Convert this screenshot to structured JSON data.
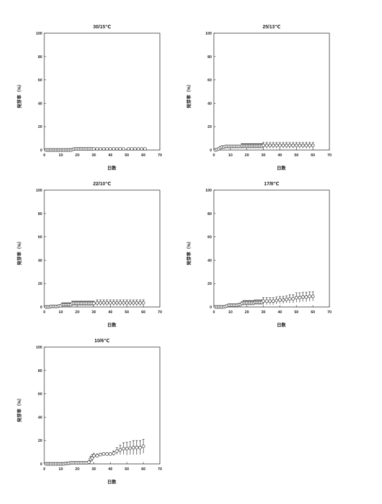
{
  "chart_data": [
    {
      "type": "scatter",
      "title": "30/15℃",
      "xlabel": "日数",
      "ylabel": "発芽率（%）",
      "xlim": [
        0,
        70
      ],
      "ylim": [
        0,
        100
      ],
      "xticks": [
        0,
        10,
        20,
        30,
        40,
        50,
        60,
        70
      ],
      "yticks": [
        0,
        20,
        40,
        60,
        80,
        100
      ],
      "grid": false,
      "marker": "open-circle",
      "x": [
        1,
        2,
        3,
        4,
        5,
        6,
        7,
        8,
        9,
        10,
        11,
        12,
        13,
        14,
        15,
        16,
        17,
        18,
        19,
        20,
        21,
        22,
        23,
        24,
        25,
        26,
        27,
        28,
        29,
        30,
        32,
        34,
        36,
        38,
        40,
        42,
        44,
        46,
        48,
        51,
        53,
        55,
        57,
        59,
        61
      ],
      "y": [
        0,
        0,
        0,
        0,
        0,
        0,
        0,
        0,
        0,
        0,
        0,
        0,
        0,
        0,
        0,
        0,
        0.5,
        0.8,
        1,
        1,
        1,
        1,
        1,
        1,
        1,
        1,
        1,
        1,
        1,
        1,
        1,
        1,
        1,
        1,
        1,
        1,
        1,
        1,
        1,
        1,
        1,
        1,
        1,
        1,
        1
      ],
      "err": [
        0,
        0,
        0,
        0,
        0,
        0,
        0,
        0,
        0,
        0,
        0,
        0,
        0,
        0,
        0,
        0,
        0,
        0,
        0,
        0,
        0,
        0,
        0,
        0,
        0,
        0,
        0,
        0,
        0,
        0,
        0,
        0,
        0,
        0,
        0,
        0,
        0,
        0,
        0,
        0,
        0,
        0,
        0,
        0,
        0
      ]
    },
    {
      "type": "scatter",
      "title": "25/13℃",
      "xlabel": "日数",
      "ylabel": "発芽率（%）",
      "xlim": [
        0,
        70
      ],
      "ylim": [
        0,
        100
      ],
      "xticks": [
        0,
        10,
        20,
        30,
        40,
        50,
        60,
        70
      ],
      "yticks": [
        0,
        20,
        40,
        60,
        80,
        100
      ],
      "grid": false,
      "marker": "open-circle",
      "x": [
        1,
        2,
        3,
        4,
        5,
        6,
        7,
        8,
        9,
        10,
        11,
        12,
        13,
        14,
        15,
        16,
        17,
        18,
        19,
        20,
        21,
        22,
        23,
        24,
        25,
        26,
        27,
        28,
        29,
        30,
        32,
        34,
        36,
        38,
        40,
        42,
        44,
        46,
        48,
        50,
        52,
        54,
        56,
        58,
        60
      ],
      "y": [
        0,
        0.5,
        1,
        2,
        2.5,
        2.5,
        3,
        3,
        3,
        3,
        3,
        3,
        3,
        3,
        3,
        3,
        3.5,
        3.5,
        3.5,
        3.5,
        3.5,
        3.5,
        3.5,
        3.5,
        3.5,
        3.5,
        3.5,
        3.5,
        3.5,
        4,
        4,
        4,
        4,
        4,
        4,
        4,
        4,
        4,
        4,
        4,
        4,
        4,
        4,
        4,
        4
      ],
      "err": [
        0,
        0,
        0.5,
        1,
        1,
        1,
        1,
        1,
        1,
        1,
        1,
        1,
        1,
        1,
        1,
        1,
        2,
        2,
        2,
        2,
        2,
        2,
        2,
        2,
        2,
        2,
        2,
        2,
        2,
        2.5,
        2.5,
        2.5,
        2.5,
        2.5,
        2.5,
        2.5,
        2.5,
        2.5,
        2.5,
        2.5,
        2.5,
        2.5,
        2.5,
        2.5,
        2.5
      ]
    },
    {
      "type": "scatter",
      "title": "22/10℃",
      "xlabel": "日数",
      "ylabel": "発芽率（%）",
      "xlim": [
        0,
        70
      ],
      "ylim": [
        0,
        100
      ],
      "xticks": [
        0,
        10,
        20,
        30,
        40,
        50,
        60,
        70
      ],
      "yticks": [
        0,
        20,
        40,
        60,
        80,
        100
      ],
      "grid": false,
      "marker": "open-circle",
      "x": [
        1,
        2,
        3,
        4,
        5,
        6,
        7,
        8,
        9,
        10,
        11,
        12,
        13,
        14,
        15,
        16,
        17,
        18,
        19,
        20,
        21,
        22,
        23,
        24,
        25,
        26,
        27,
        28,
        29,
        30,
        32,
        34,
        36,
        38,
        40,
        42,
        44,
        46,
        48,
        50,
        52,
        54,
        56,
        58,
        60
      ],
      "y": [
        0,
        0,
        0,
        0.5,
        0.5,
        0.5,
        0.5,
        0.5,
        1,
        1,
        2,
        2,
        2,
        2,
        2,
        2,
        3,
        3,
        3,
        3,
        3,
        3,
        3,
        3,
        3,
        3,
        3,
        3,
        3,
        3,
        3.5,
        3.5,
        3.5,
        3.5,
        3.5,
        3.5,
        3.5,
        3.5,
        3.5,
        3.5,
        3.5,
        3.5,
        3.5,
        3.5,
        3.5
      ],
      "err": [
        0,
        0,
        0,
        0,
        0,
        0,
        0,
        0,
        0.5,
        0.5,
        1.5,
        1.5,
        1.5,
        1.5,
        1.5,
        1.5,
        2,
        2,
        2,
        2,
        2,
        2,
        2,
        2,
        2,
        2,
        2,
        2,
        2,
        2,
        2.5,
        2.5,
        2.5,
        2.5,
        2.5,
        2.5,
        2.5,
        2.5,
        2.5,
        2.5,
        2.5,
        2.5,
        2.5,
        2.5,
        2.5
      ]
    },
    {
      "type": "scatter",
      "title": "17/8℃",
      "xlabel": "日数",
      "ylabel": "発芽率（%）",
      "xlim": [
        0,
        70
      ],
      "ylim": [
        0,
        100
      ],
      "xticks": [
        0,
        10,
        20,
        30,
        40,
        50,
        60,
        70
      ],
      "yticks": [
        0,
        20,
        40,
        60,
        80,
        100
      ],
      "grid": false,
      "marker": "open-circle",
      "x": [
        1,
        2,
        3,
        4,
        5,
        6,
        7,
        8,
        9,
        10,
        11,
        12,
        13,
        14,
        15,
        16,
        17,
        18,
        19,
        20,
        21,
        22,
        23,
        24,
        25,
        26,
        27,
        28,
        29,
        30,
        32,
        34,
        36,
        38,
        40,
        42,
        44,
        46,
        48,
        50,
        52,
        54,
        56,
        58,
        60
      ],
      "y": [
        0,
        0,
        0,
        0,
        0,
        0,
        0.5,
        1,
        1.5,
        1.5,
        1.5,
        1.5,
        1.5,
        1.5,
        2,
        2,
        3,
        3.5,
        3.5,
        3.5,
        3.5,
        3.5,
        3.5,
        3.5,
        4,
        4,
        4,
        4,
        4,
        5,
        5,
        5,
        5,
        5.5,
        6,
        6,
        6.5,
        7,
        7,
        8,
        8,
        8.5,
        8.5,
        9,
        9
      ],
      "err": [
        0,
        0,
        0,
        0,
        0,
        0,
        0.5,
        1,
        1,
        1,
        1,
        1,
        1,
        1,
        1,
        1,
        1.5,
        2,
        2,
        2,
        2,
        2,
        2,
        2,
        2,
        2,
        2,
        2,
        2,
        3,
        3,
        3,
        3,
        3,
        3,
        3,
        3,
        3.5,
        3.5,
        4,
        4,
        4,
        4,
        4,
        4
      ]
    },
    {
      "type": "scatter",
      "title": "10/6℃",
      "xlabel": "日数",
      "ylabel": "発芽率（%）",
      "xlim": [
        0,
        70
      ],
      "ylim": [
        0,
        100
      ],
      "xticks": [
        0,
        10,
        20,
        30,
        40,
        50,
        60,
        70
      ],
      "yticks": [
        0,
        20,
        40,
        60,
        80,
        100
      ],
      "grid": false,
      "marker": "open-circle",
      "x": [
        1,
        2,
        3,
        4,
        5,
        6,
        7,
        8,
        9,
        10,
        11,
        12,
        13,
        14,
        15,
        16,
        17,
        18,
        19,
        20,
        21,
        22,
        23,
        24,
        25,
        26,
        27,
        28,
        29,
        30,
        32,
        34,
        36,
        38,
        40,
        42,
        44,
        46,
        48,
        50,
        52,
        54,
        56,
        58,
        60
      ],
      "y": [
        0,
        0,
        0,
        0,
        0,
        0,
        0,
        0,
        0,
        0,
        0,
        0,
        0.5,
        0.5,
        0.5,
        1,
        1,
        1,
        1,
        1,
        1,
        1,
        1,
        1,
        1,
        1,
        1.5,
        4,
        5,
        7,
        7,
        8,
        8.5,
        8.5,
        8.5,
        9,
        11,
        12,
        13,
        13,
        13.5,
        14,
        14,
        14,
        15
      ],
      "err": [
        0,
        0,
        0,
        0,
        0,
        0,
        0,
        0,
        0,
        0,
        0,
        0,
        0,
        0,
        0,
        0.5,
        0.5,
        0.5,
        0.5,
        0.5,
        0.5,
        0.5,
        0.5,
        0.5,
        0.5,
        0.5,
        1,
        2.5,
        3,
        2,
        1.5,
        1,
        0.5,
        0.5,
        0.5,
        2,
        3,
        4,
        5,
        5.5,
        5.5,
        6,
        6,
        6,
        6
      ]
    }
  ]
}
